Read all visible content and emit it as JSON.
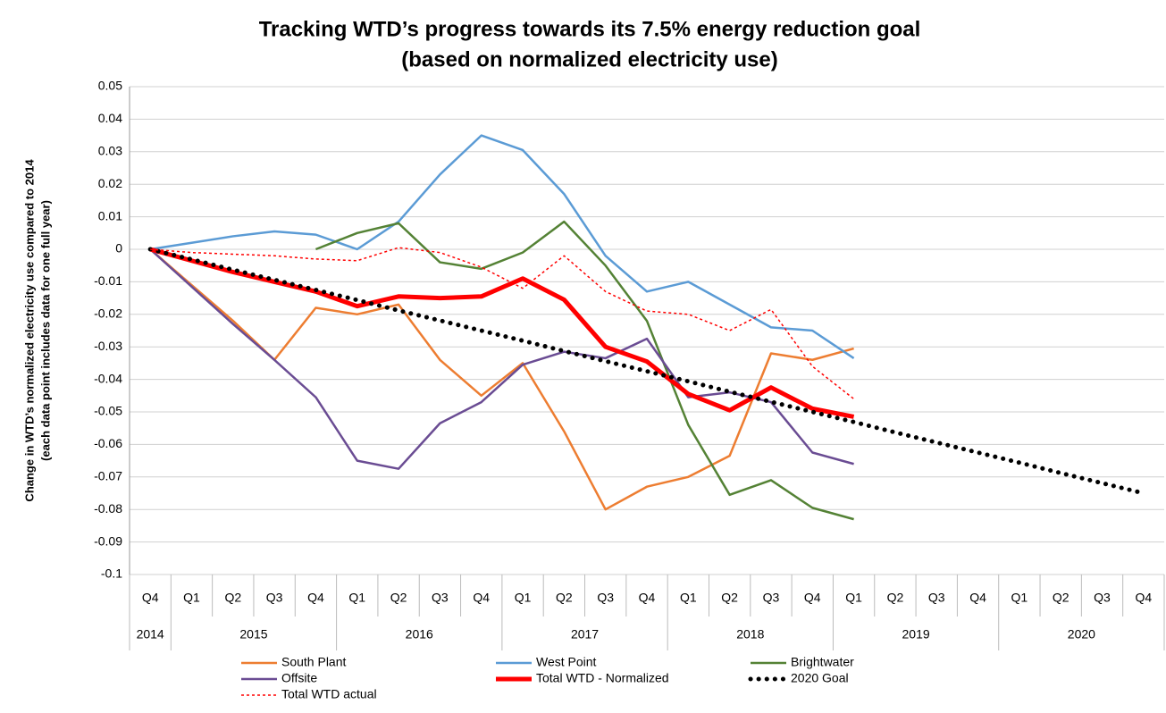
{
  "chart_data": {
    "type": "line",
    "title": "Tracking WTD’s progress towards its 7.5% energy reduction goal",
    "subtitle": "(based on normalized electricity use)",
    "ylabel": [
      "Change in WTD’s normalized electricity use compared to 2014",
      "(each data point includes data for one full year)"
    ],
    "categories": [
      {
        "quarter": "Q4",
        "year": "2014"
      },
      {
        "quarter": "Q1",
        "year": "2015"
      },
      {
        "quarter": "Q2",
        "year": "2015"
      },
      {
        "quarter": "Q3",
        "year": "2015"
      },
      {
        "quarter": "Q4",
        "year": "2015"
      },
      {
        "quarter": "Q1",
        "year": "2016"
      },
      {
        "quarter": "Q2",
        "year": "2016"
      },
      {
        "quarter": "Q3",
        "year": "2016"
      },
      {
        "quarter": "Q4",
        "year": "2016"
      },
      {
        "quarter": "Q1",
        "year": "2017"
      },
      {
        "quarter": "Q2",
        "year": "2017"
      },
      {
        "quarter": "Q3",
        "year": "2017"
      },
      {
        "quarter": "Q4",
        "year": "2017"
      },
      {
        "quarter": "Q1",
        "year": "2018"
      },
      {
        "quarter": "Q2",
        "year": "2018"
      },
      {
        "quarter": "Q3",
        "year": "2018"
      },
      {
        "quarter": "Q4",
        "year": "2018"
      },
      {
        "quarter": "Q1",
        "year": "2019"
      },
      {
        "quarter": "Q2",
        "year": "2019"
      },
      {
        "quarter": "Q3",
        "year": "2019"
      },
      {
        "quarter": "Q4",
        "year": "2019"
      },
      {
        "quarter": "Q1",
        "year": "2020"
      },
      {
        "quarter": "Q2",
        "year": "2020"
      },
      {
        "quarter": "Q3",
        "year": "2020"
      },
      {
        "quarter": "Q4",
        "year": "2020"
      }
    ],
    "ylim": [
      -0.1,
      0.05
    ],
    "yticks": [
      0.05,
      0.04,
      0.03,
      0.02,
      0.01,
      0,
      -0.01,
      -0.02,
      -0.03,
      -0.04,
      -0.05,
      -0.06,
      -0.07,
      -0.08,
      -0.09,
      -0.1
    ],
    "grid": true,
    "legend": "bottom",
    "series": [
      {
        "name": "South Plant",
        "color": "#ed7d31",
        "style": "solid",
        "values": [
          0,
          -0.011,
          -0.022,
          -0.034,
          -0.018,
          -0.02,
          -0.017,
          -0.034,
          -0.045,
          -0.035,
          -0.056,
          -0.08,
          -0.073,
          -0.07,
          -0.0635,
          -0.032,
          -0.034,
          -0.0305,
          null,
          null,
          null,
          null,
          null,
          null,
          null
        ]
      },
      {
        "name": "West Point",
        "color": "#5b9bd5",
        "style": "solid",
        "values": [
          0,
          0.002,
          0.004,
          0.0055,
          0.0045,
          0,
          0.0085,
          0.023,
          0.035,
          0.0305,
          0.017,
          -0.002,
          -0.013,
          -0.01,
          -0.017,
          -0.024,
          -0.025,
          -0.0335,
          null,
          null,
          null,
          null,
          null,
          null,
          null
        ]
      },
      {
        "name": "Brightwater",
        "color": "#548235",
        "style": "solid",
        "values": [
          null,
          null,
          null,
          null,
          0,
          0.005,
          0.008,
          -0.004,
          -0.006,
          -0.001,
          0.0085,
          -0.005,
          -0.022,
          -0.054,
          -0.0755,
          -0.071,
          -0.0795,
          -0.083,
          null,
          null,
          null,
          null,
          null,
          null,
          null
        ]
      },
      {
        "name": "Offsite",
        "color": "#6a4c93",
        "style": "solid",
        "values": [
          0,
          -0.0115,
          -0.023,
          -0.034,
          -0.0455,
          -0.065,
          -0.0675,
          -0.0535,
          -0.047,
          -0.0355,
          -0.0315,
          -0.0335,
          -0.0275,
          -0.0455,
          -0.044,
          -0.047,
          -0.0625,
          -0.066,
          null,
          null,
          null,
          null,
          null,
          null,
          null
        ]
      },
      {
        "name": "Total WTD - Normalized",
        "color": "#ff0000",
        "style": "bold",
        "values": [
          0,
          -0.0035,
          -0.007,
          -0.01,
          -0.013,
          -0.0175,
          -0.0145,
          -0.015,
          -0.0145,
          -0.009,
          -0.0155,
          -0.03,
          -0.0345,
          -0.0445,
          -0.0495,
          -0.0425,
          -0.049,
          -0.0515,
          null,
          null,
          null,
          null,
          null,
          null,
          null
        ]
      },
      {
        "name": "2020 Goal",
        "color": "#000000",
        "style": "bold-dotted",
        "values": [
          0,
          -0.0031,
          -0.0063,
          -0.0094,
          -0.0125,
          -0.0156,
          -0.0188,
          -0.0219,
          -0.025,
          -0.0281,
          -0.0313,
          -0.0344,
          -0.0375,
          -0.0406,
          -0.0438,
          -0.0469,
          -0.05,
          -0.0531,
          -0.0563,
          -0.0594,
          -0.0625,
          -0.0656,
          -0.0688,
          -0.0719,
          -0.075
        ]
      },
      {
        "name": "Total WTD actual",
        "color": "#ff0000",
        "style": "dotted",
        "values": [
          0,
          -0.001,
          -0.0015,
          -0.002,
          -0.003,
          -0.0035,
          0.0005,
          -0.001,
          -0.0055,
          -0.012,
          -0.002,
          -0.013,
          -0.019,
          -0.02,
          -0.025,
          -0.0185,
          -0.036,
          -0.046,
          null,
          null,
          null,
          null,
          null,
          null,
          null
        ]
      }
    ]
  }
}
